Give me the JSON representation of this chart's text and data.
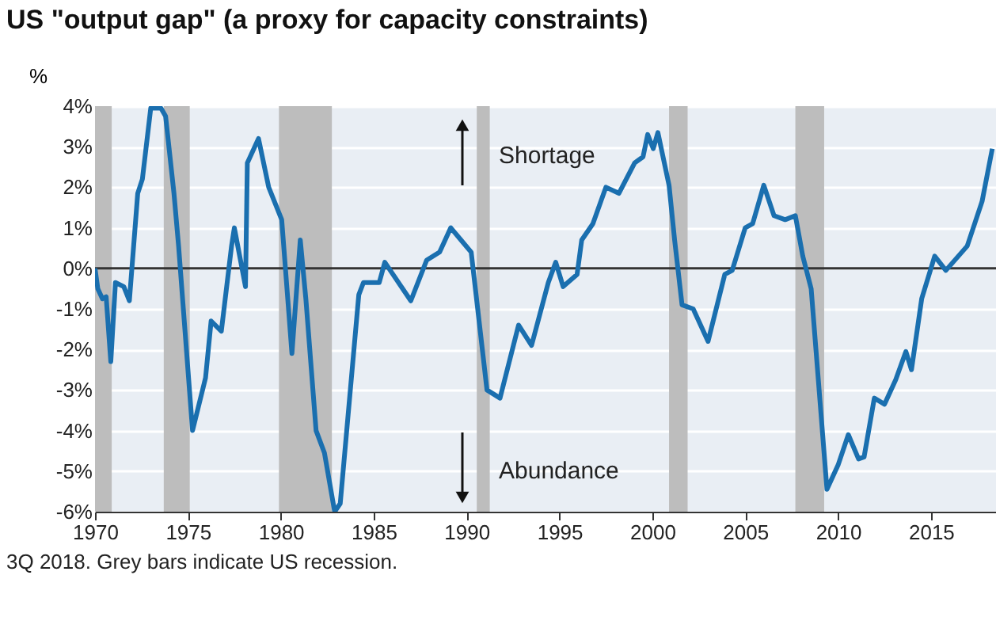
{
  "chart_data": {
    "type": "line",
    "title": "US \"output gap\" (a proxy for capacity constraints)",
    "ylabel": "%",
    "x": [
      1970.0,
      1970.15,
      1970.4,
      1970.6,
      1970.85,
      1971.1,
      1971.55,
      1971.85,
      1972.3,
      1972.55,
      1973.0,
      1973.55,
      1973.8,
      1974.25,
      1974.5,
      1975.25,
      1975.95,
      1976.25,
      1976.8,
      1977.35,
      1977.5,
      1978.1,
      1978.2,
      1978.8,
      1979.35,
      1980.05,
      1980.6,
      1981.05,
      1981.35,
      1981.9,
      1982.35,
      1982.9,
      1983.2,
      1984.2,
      1984.45,
      1985.3,
      1985.6,
      1987.0,
      1987.85,
      1988.55,
      1989.15,
      1989.7,
      1990.25,
      1991.1,
      1991.8,
      1992.8,
      1993.5,
      1994.4,
      1994.8,
      1995.2,
      1995.95,
      1996.2,
      1996.8,
      1997.5,
      1998.2,
      1999.05,
      1999.5,
      1999.75,
      2000.05,
      2000.3,
      2000.9,
      2001.2,
      2001.6,
      2002.2,
      2003.0,
      2003.9,
      2004.3,
      2005.0,
      2005.4,
      2006.0,
      2006.55,
      2007.15,
      2007.7,
      2008.1,
      2008.55,
      2009.4,
      2010.0,
      2010.55,
      2011.1,
      2011.4,
      2011.95,
      2012.5,
      2013.1,
      2013.65,
      2013.95,
      2014.5,
      2015.2,
      2015.8,
      2016.95,
      2017.75,
      2018.3
    ],
    "series": [
      {
        "color": "#1a6faf",
        "values": [
          0,
          -0.5,
          -0.75,
          -0.7,
          -2.3,
          -0.35,
          -0.45,
          -0.8,
          1.85,
          2.2,
          3.95,
          3.95,
          3.75,
          1.85,
          0.55,
          -4.0,
          -2.7,
          -1.3,
          -1.55,
          0.55,
          1.0,
          -0.45,
          2.6,
          3.2,
          2.0,
          1.2,
          -2.1,
          0.7,
          -0.75,
          -4.0,
          -4.55,
          -6.0,
          -5.8,
          -0.65,
          -0.35,
          -0.35,
          0.15,
          -0.8,
          0.2,
          0.4,
          1.0,
          0.7,
          0.4,
          -3.0,
          -3.2,
          -1.4,
          -1.9,
          -0.35,
          0.15,
          -0.45,
          -0.15,
          0.7,
          1.1,
          2.0,
          1.85,
          2.6,
          2.75,
          3.3,
          2.95,
          3.35,
          2.05,
          0.7,
          -0.9,
          -1.0,
          -1.8,
          -0.15,
          -0.05,
          1.0,
          1.1,
          2.05,
          1.3,
          1.2,
          1.3,
          0.3,
          -0.5,
          -5.45,
          -4.85,
          -4.1,
          -4.7,
          -4.65,
          -3.2,
          -3.35,
          -2.75,
          -2.05,
          -2.5,
          -0.75,
          0.3,
          -0.05,
          0.55,
          1.65,
          2.95
        ]
      }
    ],
    "xlim": [
      1970,
      2018.5
    ],
    "xticks": [
      1970,
      1975,
      1980,
      1985,
      1990,
      1995,
      2000,
      2005,
      2010,
      2015
    ],
    "ylim": [
      -6,
      4
    ],
    "yticks": [
      {
        "value": 4,
        "label": "4%"
      },
      {
        "value": 3,
        "label": "3%"
      },
      {
        "value": 2,
        "label": "2%"
      },
      {
        "value": 1,
        "label": "1%"
      },
      {
        "value": 0,
        "label": "0%"
      },
      {
        "value": -1,
        "label": "-1%"
      },
      {
        "value": -2,
        "label": "-2%"
      },
      {
        "value": -3,
        "label": "-3%"
      },
      {
        "value": -4,
        "label": "-4%"
      },
      {
        "value": -5,
        "label": "-5%"
      },
      {
        "value": -6,
        "label": "-6%"
      }
    ],
    "grid": "y",
    "line_style": "solid",
    "marker": "none",
    "ref_lines": [
      {
        "axis": "y",
        "value": 0,
        "color": "#333333"
      }
    ],
    "bands": [
      {
        "axis": "x",
        "from": 1970.0,
        "to": 1970.9,
        "color": "#bdbdbd"
      },
      {
        "axis": "x",
        "from": 1973.7,
        "to": 1975.1,
        "color": "#bdbdbd"
      },
      {
        "axis": "x",
        "from": 1979.9,
        "to": 1982.75,
        "color": "#bdbdbd"
      },
      {
        "axis": "x",
        "from": 1990.55,
        "to": 1991.25,
        "color": "#bdbdbd"
      },
      {
        "axis": "x",
        "from": 2000.9,
        "to": 2001.9,
        "color": "#bdbdbd"
      },
      {
        "axis": "x",
        "from": 2007.7,
        "to": 2009.25,
        "color": "#bdbdbd"
      }
    ],
    "annotations": [
      "Shortage",
      "Abundance",
      "3Q 2018. Grey bars indicate US recession."
    ]
  }
}
